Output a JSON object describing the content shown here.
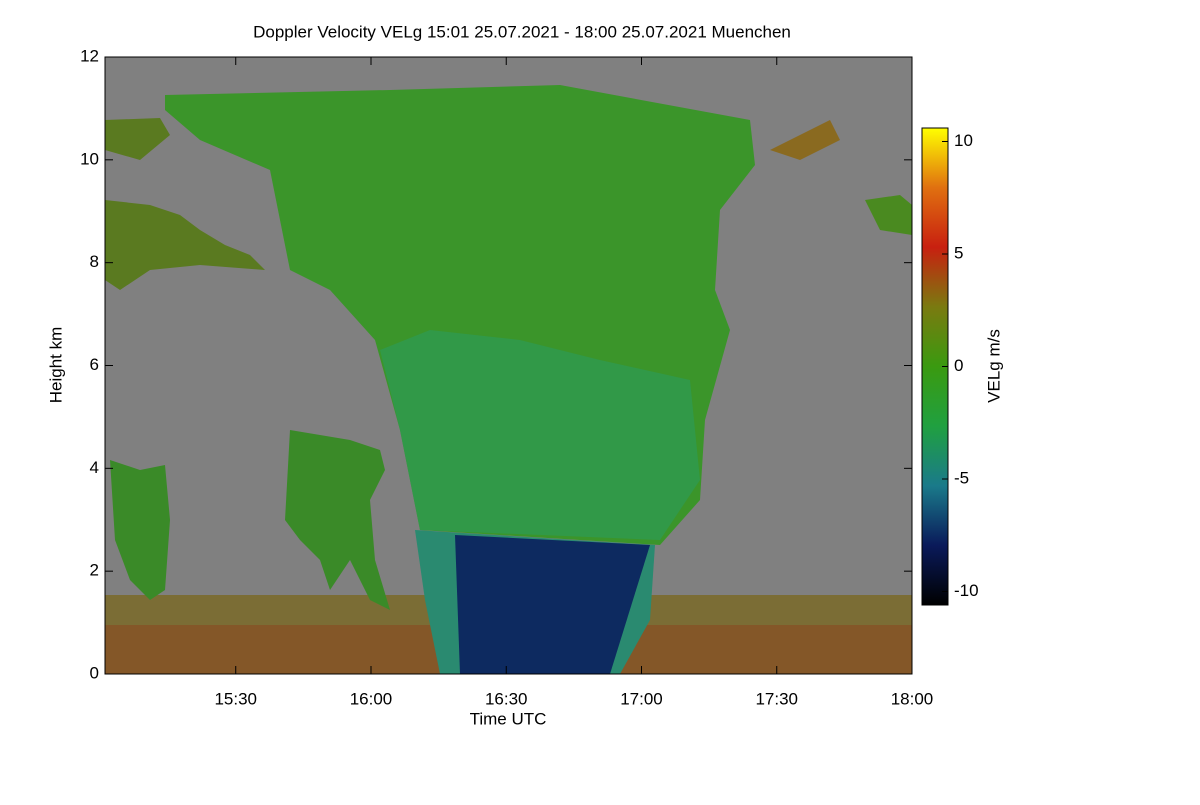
{
  "chart_data": {
    "type": "heatmap",
    "title": "Doppler Velocity VELg   15:01 25.07.2021 - 18:00 25.07.2021 Muenchen",
    "xlabel": "Time UTC",
    "ylabel": "Height km",
    "colorbar_label": "VELg m/s",
    "xlim": [
      15.0167,
      18.0
    ],
    "xticks": [
      {
        "value": 15.5,
        "label": "15:30"
      },
      {
        "value": 16.0,
        "label": "16:00"
      },
      {
        "value": 16.5,
        "label": "16:30"
      },
      {
        "value": 17.0,
        "label": "17:00"
      },
      {
        "value": 17.5,
        "label": "17:30"
      },
      {
        "value": 18.0,
        "label": "18:00"
      }
    ],
    "ylim": [
      0,
      12
    ],
    "yticks": [
      0,
      2,
      4,
      6,
      8,
      10,
      12
    ],
    "clim": [
      -10.6,
      10.6
    ],
    "cticks": [
      -10,
      -5,
      0,
      5,
      10
    ],
    "colormap": [
      "#000000",
      "#0a1a5a",
      "#1a7a8a",
      "#20a040",
      "#3a9a10",
      "#7a7a10",
      "#c82010",
      "#e07010",
      "#ffff00"
    ]
  }
}
